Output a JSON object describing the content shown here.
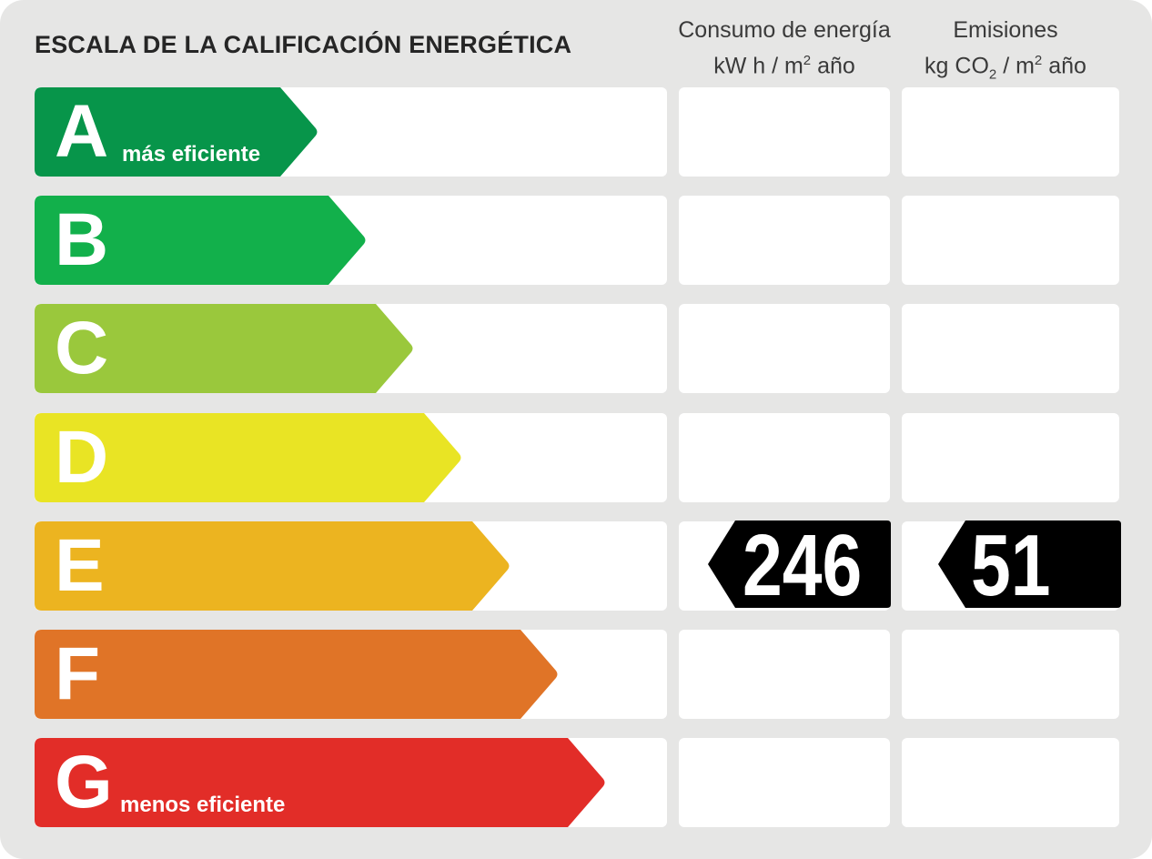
{
  "title": "ESCALA DE LA CALIFICACIÓN ENERGÉTICA",
  "columns": {
    "consumo": {
      "line1": "Consumo de energía",
      "line2_pre": "kW h  / m",
      "line2_sup": "2",
      "line2_post": " año"
    },
    "emisiones": {
      "line1": "Emisiones",
      "line2_pre": "kg CO",
      "line2_sub": "2",
      "line2_mid": "  / m",
      "line2_sup": "2",
      "line2_post": " año"
    }
  },
  "ratings": [
    {
      "letter": "A",
      "label": "más eficiente",
      "color": "#07954a"
    },
    {
      "letter": "B",
      "label": "",
      "color": "#12b04b"
    },
    {
      "letter": "C",
      "label": "",
      "color": "#9ac83c"
    },
    {
      "letter": "D",
      "label": "",
      "color": "#e9e424"
    },
    {
      "letter": "E",
      "label": "",
      "color": "#ecb420"
    },
    {
      "letter": "F",
      "label": "",
      "color": "#e07427"
    },
    {
      "letter": "G",
      "label": "menos eficiente",
      "color": "#e22d28"
    }
  ],
  "current": {
    "rating": "E",
    "consumo_value": "246",
    "emisiones_value": "51",
    "indicator_color": "#000000"
  }
}
